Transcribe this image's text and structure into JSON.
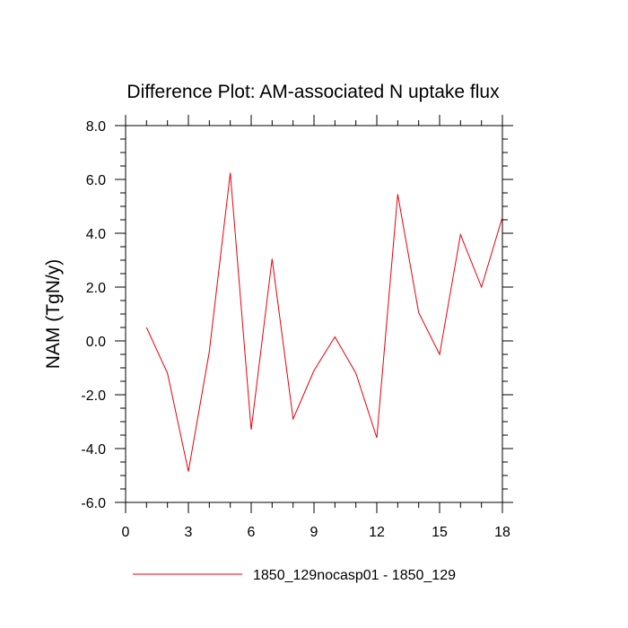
{
  "chart_data": {
    "type": "line",
    "title": "Difference Plot: AM-associated N uptake flux",
    "xlabel": "",
    "ylabel": "NAM  (TgN/y)",
    "xlim": [
      0,
      18
    ],
    "ylim": [
      -6.0,
      8.0
    ],
    "xticks": [
      0,
      3,
      6,
      9,
      12,
      15,
      18
    ],
    "xtick_labels": [
      "0",
      "3",
      "6",
      "9",
      "12",
      "15",
      "18"
    ],
    "yticks": [
      -6.0,
      -4.0,
      -2.0,
      0.0,
      2.0,
      4.0,
      6.0,
      8.0
    ],
    "ytick_labels": [
      "-6.0",
      "-4.0",
      "-2.0",
      "0.0",
      "2.0",
      "4.0",
      "6.0",
      "8.0"
    ],
    "grid": false,
    "legend_position": "bottom-center",
    "series": [
      {
        "name": "1850_129nocasp01 - 1850_129",
        "color": "#e8000b",
        "x": [
          1,
          2,
          3,
          4,
          5,
          6,
          7,
          8,
          9,
          10,
          11,
          12,
          13,
          14,
          15,
          16,
          17,
          18
        ],
        "values": [
          0.5,
          -1.2,
          -4.85,
          -0.4,
          6.25,
          -3.3,
          3.05,
          -2.9,
          -1.1,
          0.15,
          -1.2,
          -3.6,
          5.45,
          1.05,
          -0.5,
          3.95,
          2.0,
          4.6
        ]
      }
    ]
  }
}
